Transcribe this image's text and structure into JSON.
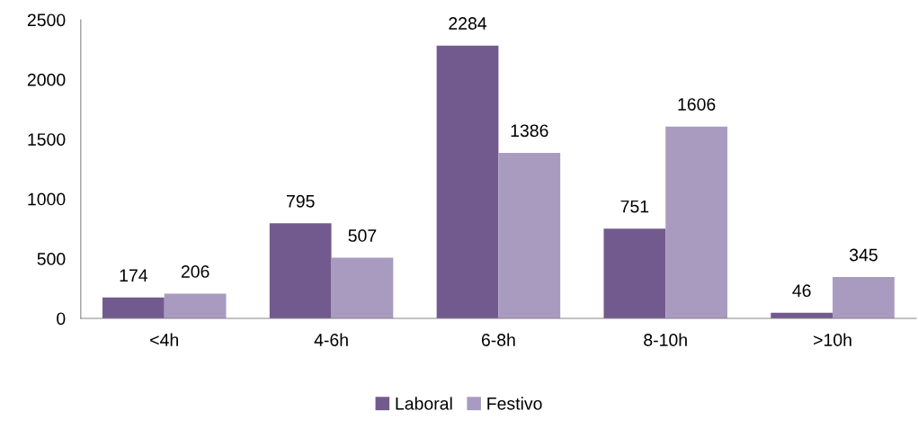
{
  "chart_data": {
    "type": "bar",
    "categories": [
      "<4h",
      "4-6h",
      "6-8h",
      "8-10h",
      ">10h"
    ],
    "series": [
      {
        "name": "Laboral",
        "color": "#735a8e",
        "values": [
          174,
          795,
          2284,
          751,
          46
        ]
      },
      {
        "name": "Festivo",
        "color": "#a99bc0",
        "values": [
          206,
          507,
          1386,
          1606,
          345
        ]
      }
    ],
    "ylim": [
      0,
      2500
    ],
    "yticks": [
      0,
      500,
      1000,
      1500,
      2000,
      2500
    ],
    "data_labels": true,
    "grid": false,
    "legend": "bottom"
  }
}
